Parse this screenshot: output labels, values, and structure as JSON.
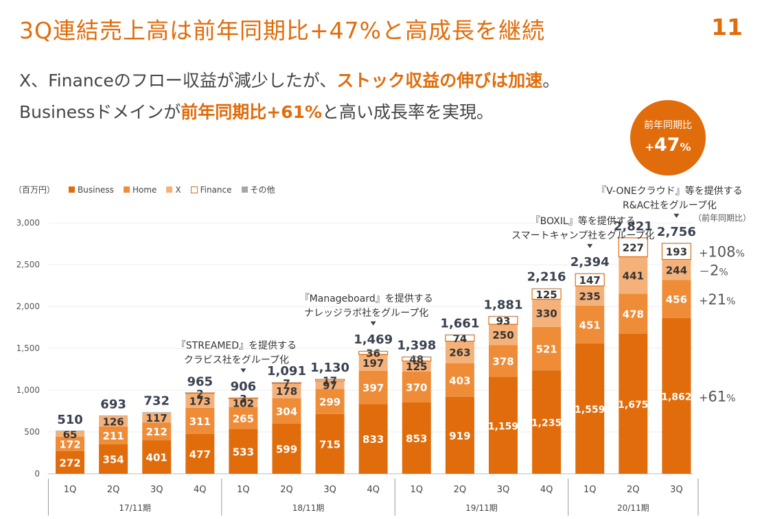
{
  "header": {
    "title": "3Q連結売上高は前年同期比+47%と高成長を継続",
    "page_number": "11"
  },
  "lead": {
    "line1_a": "X、Financeのフロー収益が減少したが、",
    "line1_b": "ストック収益の伸びは加速",
    "line1_c": "。",
    "line2_a": "Businessドメインが",
    "line2_b": "前年同期比+61%",
    "line2_c": "と高い成長率を実現。"
  },
  "badge": {
    "label": "前年同期比",
    "value_prefix": "+",
    "value": "47",
    "value_suffix": "%"
  },
  "legend": {
    "unit": "（百万円）",
    "items": [
      {
        "label": "Business",
        "color": "#e06c0b"
      },
      {
        "label": "Home",
        "color": "#ee8c37"
      },
      {
        "label": "X",
        "color": "#f4b27a"
      },
      {
        "label": "Finance",
        "color": "#ffffff"
      },
      {
        "label": "その他",
        "color": "#a6a6a6"
      }
    ]
  },
  "colors": {
    "business": "#e06c0b",
    "home": "#ee8c37",
    "x": "#f4b27a",
    "finance": "#ffffff",
    "other": "#a6a6a6",
    "accent": "#e06c0b"
  },
  "chart_data": {
    "type": "bar",
    "stacked": true,
    "ylim": [
      0,
      3000
    ],
    "yticks": [
      "0",
      "500",
      "1,000",
      "1,500",
      "2,000",
      "2,500",
      "3,000"
    ],
    "ytick_values": [
      0,
      500,
      1000,
      1500,
      2000,
      2500,
      3000
    ],
    "categories": [
      "1Q",
      "2Q",
      "3Q",
      "4Q",
      "1Q",
      "2Q",
      "3Q",
      "4Q",
      "1Q",
      "2Q",
      "3Q",
      "4Q",
      "1Q",
      "2Q",
      "3Q"
    ],
    "groups": [
      {
        "label": "17/11期",
        "count": 4
      },
      {
        "label": "18/11期",
        "count": 4
      },
      {
        "label": "19/11期",
        "count": 4
      },
      {
        "label": "20/11期",
        "count": 3
      }
    ],
    "totals": [
      510,
      693,
      732,
      965,
      906,
      1091,
      1130,
      1469,
      1398,
      1661,
      1881,
      2216,
      2394,
      2821,
      2756
    ],
    "total_labels": [
      "510",
      "693",
      "732",
      "965",
      "906",
      "1,091",
      "1,130",
      "1,469",
      "1,398",
      "1,661",
      "1,881",
      "2,216",
      "2,394",
      "2,821",
      "2,756"
    ],
    "series": [
      {
        "name": "Business",
        "key": "business",
        "values": [
          272,
          354,
          401,
          477,
          533,
          599,
          715,
          833,
          853,
          919,
          1159,
          1235,
          1559,
          1675,
          1862
        ],
        "labels": [
          "272",
          "354",
          "401",
          "477",
          "533",
          "599",
          "715",
          "833",
          "853",
          "919",
          "1,159",
          "1,235",
          "1,559",
          "1,675",
          "1,862"
        ]
      },
      {
        "name": "Home",
        "key": "home",
        "values": [
          172,
          211,
          212,
          311,
          265,
          304,
          299,
          397,
          370,
          403,
          378,
          521,
          451,
          478,
          456
        ],
        "labels": [
          "172",
          "211",
          "212",
          "311",
          "265",
          "304",
          "299",
          "397",
          "370",
          "403",
          "378",
          "521",
          "451",
          "478",
          "456"
        ]
      },
      {
        "name": "X",
        "key": "x",
        "values": [
          65,
          126,
          117,
          173,
          102,
          178,
          97,
          197,
          125,
          263,
          250,
          330,
          235,
          441,
          244
        ],
        "labels": [
          "65",
          "126",
          "117",
          "173",
          "102",
          "178",
          "97",
          "197",
          "125",
          "263",
          "250",
          "330",
          "235",
          "441",
          "244"
        ]
      },
      {
        "name": "Finance",
        "key": "finance",
        "values": [
          0,
          0,
          0,
          2,
          3,
          7,
          17,
          36,
          48,
          74,
          93,
          125,
          147,
          227,
          193
        ],
        "labels": [
          "",
          "",
          "",
          "2",
          "3",
          "7",
          "17",
          "36",
          "48",
          "74",
          "93",
          "125",
          "147",
          "227",
          "193"
        ]
      },
      {
        "name": "その他",
        "key": "other",
        "values": [
          1,
          2,
          2,
          2,
          3,
          3,
          2,
          6,
          2,
          2,
          1,
          5,
          2,
          0,
          1
        ],
        "labels": [
          "",
          "",
          "",
          "",
          "",
          "",
          "",
          "",
          "",
          "",
          "",
          "",
          "",
          "",
          ""
        ]
      }
    ],
    "yoy": {
      "title": "（前年同期比）",
      "items": [
        {
          "series": "Finance",
          "prefix": "+",
          "value": "108",
          "suffix": "%"
        },
        {
          "series": "X",
          "prefix": "－",
          "value": "2",
          "suffix": "%"
        },
        {
          "series": "Home",
          "prefix": "+",
          "value": "21",
          "suffix": "%"
        },
        {
          "series": "Business",
          "prefix": "+",
          "value": "61",
          "suffix": "%"
        }
      ]
    },
    "annotations": [
      {
        "bar_index": 4,
        "lines": [
          "『STREAMED』を提供する",
          "クラビス社をグループ化"
        ]
      },
      {
        "bar_index": 7,
        "lines": [
          "『Manageboard』を提供する",
          "ナレッジラボ社をグループ化"
        ]
      },
      {
        "bar_index": 12,
        "lines": [
          "『BOXIL』等を提供する",
          "スマートキャンプ社をグループ化"
        ]
      },
      {
        "bar_index": 14,
        "lines": [
          "『V-ONEクラウド』等を提供する",
          "R&AC社をグループ化"
        ]
      }
    ]
  }
}
